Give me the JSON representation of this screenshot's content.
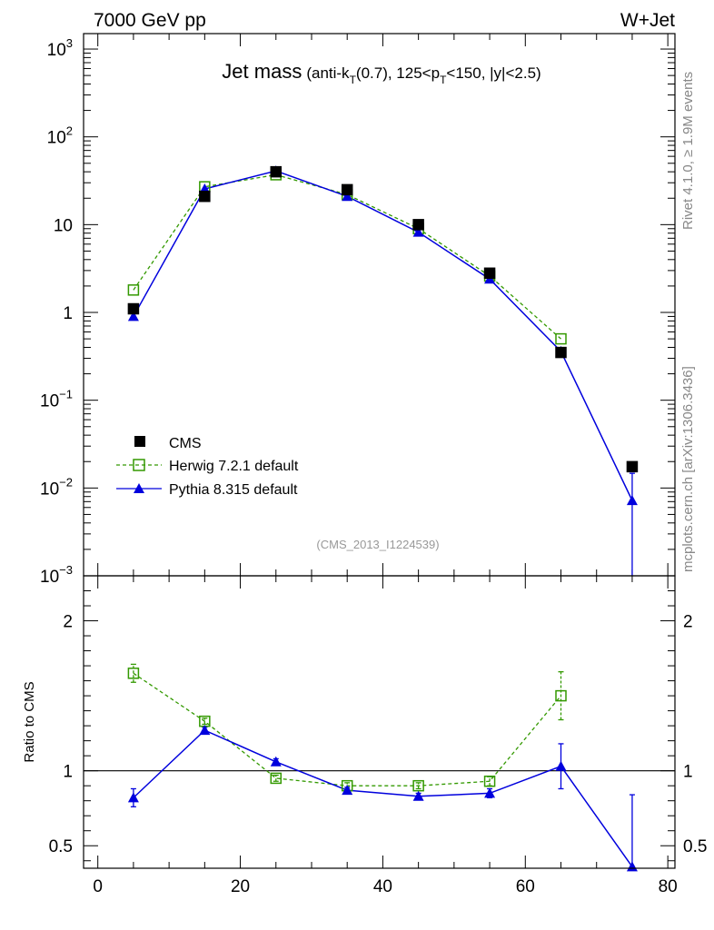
{
  "header": {
    "energy_label": "7000 GeV pp",
    "process_label": "W+Jet"
  },
  "side_labels": {
    "rivet": "Rivet 4.1.0, ≥ 1.9M events",
    "mcplots": "mcplots.cern.ch [arXiv:1306.3436]"
  },
  "analysis_ref": "(CMS_2013_I1224539)",
  "colors": {
    "data": "#000000",
    "herwig": "#339900",
    "pythia": "#0000dd",
    "side_text": "#888888"
  },
  "chart_data": {
    "type": "line",
    "title": {
      "main": "Jet mass",
      "detail_parts": [
        "(anti-k",
        "T",
        "(0.7), 125<p",
        "T",
        "<150, |y|<2.5)"
      ]
    },
    "xlabel": "",
    "xlim": [
      -2,
      81
    ],
    "x_ticks": [
      0,
      20,
      40,
      60,
      80
    ],
    "x": [
      5,
      15,
      25,
      35,
      45,
      55,
      65,
      75
    ],
    "main_panel": {
      "yscale": "log",
      "ylim": [
        0.001,
        1500
      ],
      "y_tick_labels": [
        {
          "value": 1000,
          "base": "10",
          "exp": "3"
        },
        {
          "value": 100,
          "base": "10",
          "exp": "2"
        },
        {
          "value": 10,
          "base": "10",
          "exp": ""
        },
        {
          "value": 1,
          "base": "1",
          "exp": ""
        },
        {
          "value": 0.1,
          "base": "10",
          "exp": "−1"
        },
        {
          "value": 0.01,
          "base": "10",
          "exp": "−2"
        },
        {
          "value": 0.001,
          "base": "10",
          "exp": "−3"
        }
      ],
      "series": [
        {
          "name": "CMS",
          "style": "data",
          "values": [
            1.1,
            21,
            40,
            25,
            10,
            2.8,
            0.35,
            0.0175
          ]
        },
        {
          "name": "Herwig 7.2.1 default",
          "style": "herwig",
          "values": [
            1.8,
            27,
            37,
            22,
            9.0,
            2.6,
            0.5,
            null
          ]
        },
        {
          "name": "Pythia 8.315 default",
          "style": "pythia",
          "values": [
            0.9,
            25.5,
            41,
            21,
            8.2,
            2.4,
            0.36,
            0.0072
          ],
          "errors_low": [
            null,
            null,
            null,
            null,
            null,
            null,
            null,
            0.0068
          ],
          "errors_high": [
            null,
            null,
            null,
            null,
            null,
            null,
            null,
            0.0075
          ]
        }
      ],
      "legend": {
        "position": "bottom-left",
        "entries": [
          "CMS",
          "Herwig 7.2.1 default",
          "Pythia 8.315 default"
        ]
      }
    },
    "ratio_panel": {
      "ylabel": "Ratio to CMS",
      "ylim": [
        0.35,
        2.3
      ],
      "y_ticks": [
        0.5,
        1,
        2
      ],
      "y_tick_labels": [
        "0.5",
        "1",
        "2"
      ],
      "reference": 1,
      "series": [
        {
          "name": "Herwig 7.2.1 default",
          "style": "herwig",
          "values": [
            1.65,
            1.33,
            0.95,
            0.9,
            0.9,
            0.93,
            1.5,
            null
          ],
          "err": [
            0.06,
            0.02,
            0.02,
            0.02,
            0.02,
            0.03,
            0.16,
            null
          ]
        },
        {
          "name": "Pythia 8.315 default",
          "style": "pythia",
          "values": [
            0.82,
            1.27,
            1.06,
            0.87,
            0.83,
            0.85,
            1.03,
            0.36
          ],
          "err": [
            0.06,
            0.02,
            0.02,
            0.02,
            0.02,
            0.03,
            0.15,
            null
          ],
          "err_lo": [
            null,
            null,
            null,
            null,
            null,
            null,
            null,
            0.36
          ],
          "err_hi": [
            null,
            null,
            null,
            null,
            null,
            null,
            null,
            0.84
          ]
        }
      ]
    }
  }
}
